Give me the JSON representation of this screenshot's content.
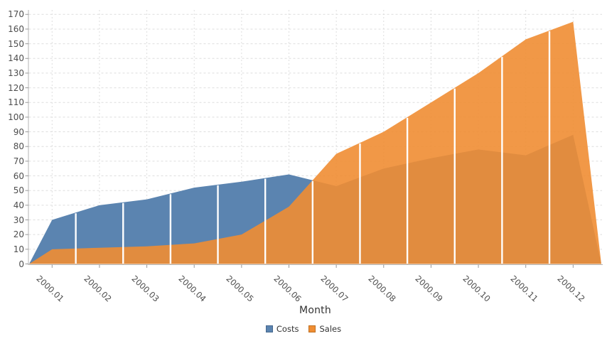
{
  "chart_data": {
    "type": "area",
    "title": "",
    "xlabel": "Month",
    "categories": [
      "2000.01",
      "2000.02",
      "2000.03",
      "2000.04",
      "2000.05",
      "2000.06",
      "2000.07",
      "2000.08",
      "2000.09",
      "2000.10",
      "2000.11",
      "2000.12"
    ],
    "series": [
      {
        "name": "Costs",
        "color": "#5b84b0",
        "legend_border": "#46688e",
        "fill_opacity": 1.0,
        "values": [
          30,
          40,
          44,
          52,
          56,
          61,
          53,
          65,
          72,
          78,
          74,
          88
        ]
      },
      {
        "name": "Sales",
        "color": "#ef8d33",
        "legend_border": "#bf7022",
        "fill_opacity": 0.9,
        "values": [
          10,
          11,
          12,
          14,
          20,
          39,
          75,
          90,
          110,
          130,
          153,
          165
        ]
      }
    ],
    "ylim": [
      0,
      170
    ],
    "ytick_step": 10,
    "grid": true,
    "legend_position": "bottom",
    "x_label_rotation_deg": 43,
    "edge_zeros": true,
    "separator_lines": "white vertical lines at category midpoints"
  },
  "colors": {
    "background": "#ffffff",
    "grid": "#dedede",
    "axis": "#b3b3b3",
    "tick": "#999999",
    "separator": "#ffffff",
    "label_text": "#4d4d4d",
    "title_text": "#333333"
  }
}
